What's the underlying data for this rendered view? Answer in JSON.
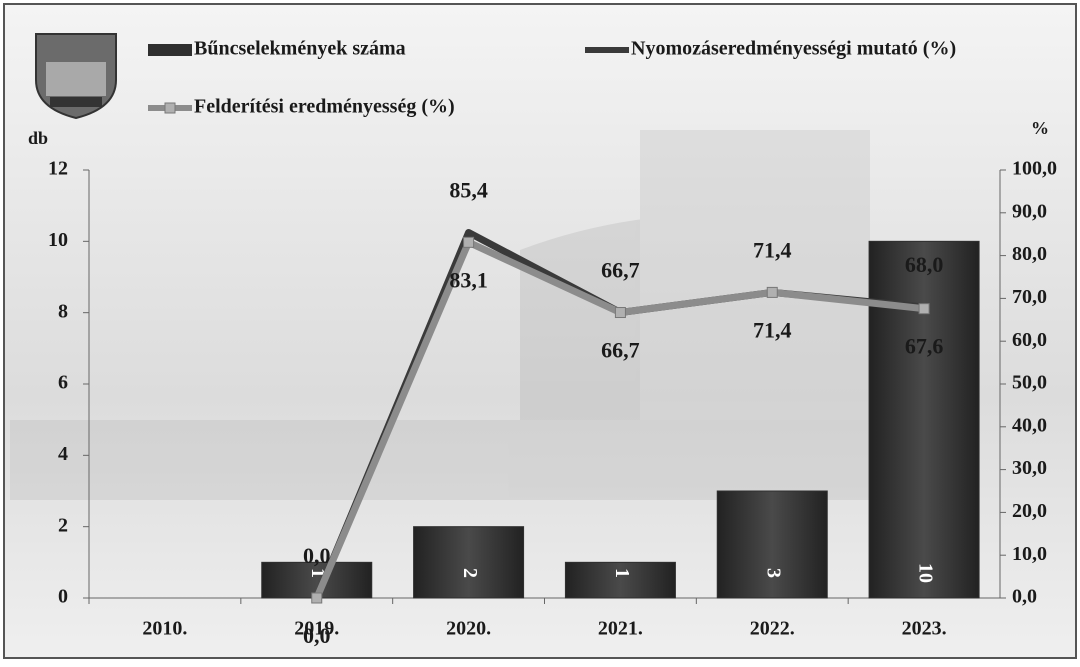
{
  "chart_data": {
    "type": "combo",
    "categories": [
      "2010.",
      "2019.",
      "2020.",
      "2021.",
      "2022.",
      "2023."
    ],
    "series": [
      {
        "name": "Bűncselekmények száma",
        "type": "bar",
        "color": "#2f2f2f",
        "values": [
          null,
          1,
          2,
          1,
          3,
          10
        ]
      },
      {
        "name": "Nyomozáseredményességi mutató (%)",
        "type": "line",
        "axis": "y2",
        "color": "#3a3a3a",
        "values": [
          null,
          0.0,
          85.4,
          66.7,
          71.4,
          68.0
        ],
        "value_labels": [
          null,
          "0,0",
          "85,4",
          "66,7",
          "71,4",
          "68,0"
        ]
      },
      {
        "name": "Felderítési eredményesség (%)",
        "type": "line",
        "axis": "y2",
        "color": "#8c8c8c",
        "values": [
          null,
          0.0,
          83.1,
          66.7,
          71.4,
          67.6
        ],
        "value_labels": [
          null,
          "0,0",
          "83,1",
          "66,7",
          "71,4",
          "67,6"
        ]
      }
    ],
    "ylabel": "db",
    "y2label": "%",
    "ylim": [
      0,
      12
    ],
    "yticks": [
      0,
      2,
      4,
      6,
      8,
      10,
      12
    ],
    "y2lim": [
      0,
      100
    ],
    "y2ticks": [
      {
        "value": 0,
        "label": "0,0"
      },
      {
        "value": 10,
        "label": "10,0"
      },
      {
        "value": 20,
        "label": "20,0"
      },
      {
        "value": 30,
        "label": "30,0"
      },
      {
        "value": 40,
        "label": "40,0"
      },
      {
        "value": 50,
        "label": "50,0"
      },
      {
        "value": 60,
        "label": "60,0"
      },
      {
        "value": 70,
        "label": "70,0"
      },
      {
        "value": 80,
        "label": "80,0"
      },
      {
        "value": 90,
        "label": "90,0"
      },
      {
        "value": 100,
        "label": "100,0"
      }
    ]
  }
}
